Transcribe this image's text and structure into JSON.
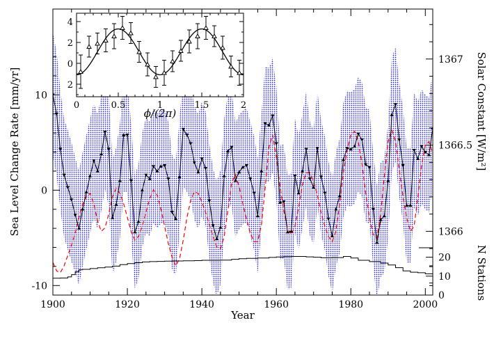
{
  "chart_data": [
    {
      "type": "line",
      "xlabel": "Year",
      "ylabel": "Sea Level Change Rate [mm/yr]",
      "y2label": "Solar Constant [W/m²]",
      "y3label": "N Stations",
      "xlim": [
        1900,
        2002
      ],
      "ylim": [
        -11,
        19
      ],
      "y2lim": [
        1365.63,
        1367.29
      ],
      "y3lim": [
        0,
        25
      ],
      "x_ticks": [
        1900,
        1920,
        1940,
        1960,
        1980,
        2000
      ],
      "y_ticks": [
        -10,
        0,
        10
      ],
      "y2_ticks": [
        1366,
        1366.5,
        1367
      ],
      "y3_ticks": [
        0,
        10,
        20
      ],
      "series": [
        {
          "role": "sea_level",
          "color": "#000000",
          "x": [
            1900,
            1901,
            1902,
            1903,
            1904,
            1905,
            1906,
            1907,
            1908,
            1909,
            1910,
            1911,
            1912,
            1913,
            1914,
            1915,
            1916,
            1917,
            1918,
            1919,
            1920,
            1921,
            1922,
            1923,
            1924,
            1925,
            1926,
            1927,
            1928,
            1929,
            1930,
            1931,
            1932,
            1933,
            1934,
            1935,
            1936,
            1937,
            1938,
            1939,
            1940,
            1941,
            1942,
            1943,
            1944,
            1945,
            1946,
            1947,
            1948,
            1949,
            1950,
            1951,
            1952,
            1953,
            1954,
            1955,
            1956,
            1957,
            1958,
            1959,
            1960,
            1961,
            1962,
            1963,
            1964,
            1965,
            1966,
            1967,
            1968,
            1969,
            1970,
            1971,
            1972,
            1973,
            1974,
            1975,
            1976,
            1977,
            1978,
            1979,
            1980,
            1981,
            1982,
            1983,
            1984,
            1985,
            1986,
            1987,
            1988,
            1989,
            1990,
            1991,
            1992,
            1993,
            1994,
            1995,
            1996,
            1997,
            1998,
            1999,
            2000,
            2001,
            2002
          ],
          "y": [
            10,
            8,
            4.3,
            1.6,
            0.3,
            -1,
            -2.6,
            -4,
            -2,
            -0.2,
            1.5,
            3.1,
            2,
            3.8,
            6.1,
            4.3,
            -2.9,
            -1.5,
            1,
            5.8,
            5.8,
            1,
            -4.4,
            -3.3,
            0,
            1.6,
            1.2,
            2.5,
            2,
            2.5,
            2.6,
            1.2,
            -2.3,
            -3,
            1.4,
            6.4,
            5.8,
            4.9,
            2.9,
            1.9,
            3.3,
            2.3,
            -1.1,
            -3.7,
            -5.1,
            -3.9,
            1.5,
            4.1,
            4.5,
            1,
            1.9,
            2.4,
            2.6,
            1.2,
            -0.3,
            -2.7,
            2,
            7,
            6.8,
            7.8,
            4.9,
            -1.3,
            -1.2,
            -4.4,
            -4.3,
            1.5,
            -0.3,
            2,
            4.3,
            1.2,
            0.3,
            4.4,
            1.4,
            -0.3,
            -3,
            -4.8,
            -2,
            -0.6,
            3.2,
            4.4,
            4.3,
            4.6,
            5.9,
            5.3,
            2.7,
            2.4,
            -2,
            -5.5,
            -3.1,
            -2.7,
            1,
            7.9,
            9,
            5.3,
            2.6,
            -1.6,
            -1.6,
            4.2,
            3.3,
            4.6,
            4,
            3.7,
            6.5
          ]
        },
        {
          "role": "sea_level_band",
          "color": "#1f1fcc",
          "x": [
            1900,
            1901,
            1902,
            1903,
            1904,
            1905,
            1906,
            1907,
            1908,
            1909,
            1910,
            1911,
            1912,
            1913,
            1914,
            1915,
            1916,
            1917,
            1918,
            1919,
            1920,
            1921,
            1922,
            1923,
            1924,
            1925,
            1926,
            1927,
            1928,
            1929,
            1930,
            1931,
            1932,
            1933,
            1934,
            1935,
            1936,
            1937,
            1938,
            1939,
            1940,
            1941,
            1942,
            1943,
            1944,
            1945,
            1946,
            1947,
            1948,
            1949,
            1950,
            1951,
            1952,
            1953,
            1954,
            1955,
            1956,
            1957,
            1958,
            1959,
            1960,
            1961,
            1962,
            1963,
            1964,
            1965,
            1966,
            1967,
            1968,
            1969,
            1970,
            1971,
            1972,
            1973,
            1974,
            1975,
            1976,
            1977,
            1978,
            1979,
            1980,
            1981,
            1982,
            1983,
            1984,
            1985,
            1986,
            1987,
            1988,
            1989,
            1990,
            1991,
            1992,
            1993,
            1994,
            1995,
            1996,
            1997,
            1998,
            1999,
            2000,
            2001,
            2002
          ],
          "upper": [
            16.5,
            14.5,
            10.5,
            7.5,
            6.3,
            5,
            3.4,
            2,
            4,
            5.8,
            7.5,
            9.1,
            8,
            9.8,
            12.1,
            10.3,
            3.1,
            4.5,
            7,
            11.8,
            11.8,
            7,
            1.6,
            2.7,
            6,
            7.6,
            7.2,
            8.5,
            8,
            8.5,
            8.6,
            7.2,
            3.7,
            3,
            7.4,
            12.4,
            11.8,
            10.9,
            8.9,
            7.9,
            9.3,
            8.3,
            4.9,
            2.3,
            0.9,
            2.1,
            7.5,
            10.1,
            10.5,
            7,
            7.9,
            8.4,
            8.6,
            7.2,
            5.7,
            3.3,
            8,
            13,
            12.8,
            13.8,
            10.9,
            4.7,
            4.8,
            1.6,
            1.7,
            7.5,
            5.7,
            8,
            10.3,
            7.2,
            6.3,
            10.4,
            7.4,
            5.7,
            3,
            1.2,
            4,
            5.4,
            9.2,
            10.4,
            10.3,
            10.6,
            11.9,
            11.3,
            8.7,
            8.4,
            4,
            0.5,
            2.9,
            3.3,
            7,
            13.9,
            15,
            11.3,
            8.6,
            4.4,
            4.4,
            10.2,
            9.3,
            10.6,
            10,
            9.7,
            12.5
          ],
          "lower": [
            3.5,
            1.5,
            -2,
            -5,
            -6.2,
            -7.5,
            -8.6,
            -10,
            -8,
            -6.2,
            -4.5,
            -2.9,
            -4,
            -2.2,
            0.1,
            -1.7,
            -8.9,
            -7.5,
            -5,
            -0.2,
            -0.2,
            -5,
            -10.4,
            -9.3,
            -6,
            -4.4,
            -4.8,
            -3.5,
            -4,
            -3.5,
            -3.4,
            -4.8,
            -8.3,
            -9,
            -4.6,
            0.4,
            -0.2,
            -1.1,
            -3.1,
            -4.1,
            -2.7,
            -3.7,
            -7.1,
            -9.7,
            -11.1,
            -9.9,
            -4.5,
            -1.9,
            -1.5,
            -5,
            -4.1,
            -3.6,
            -3.4,
            -4.8,
            -6.3,
            -8.7,
            -4,
            1,
            0.8,
            1.8,
            -1.1,
            -7.3,
            -7.2,
            -10.4,
            -10.3,
            -4.5,
            -6.3,
            -4,
            -1.7,
            -4.8,
            -5.7,
            -1.6,
            -4.6,
            -6.3,
            -9,
            -10.8,
            -8,
            -6.6,
            -2.8,
            -1.6,
            -1.7,
            -1.4,
            -0.1,
            -0.7,
            -3.3,
            -3.6,
            -8,
            -11.5,
            -9.1,
            -8.7,
            -5,
            1.9,
            3,
            -0.7,
            -3.4,
            -7.6,
            -7.6,
            -1.8,
            -2.7,
            -1.4,
            -2,
            -2.3,
            0.5
          ]
        },
        {
          "role": "solar_constant",
          "color": "#ff0000",
          "x": [
            1900,
            1901,
            1902,
            1903,
            1904,
            1905,
            1906,
            1907,
            1908,
            1909,
            1910,
            1911,
            1912,
            1913,
            1914,
            1915,
            1916,
            1917,
            1918,
            1919,
            1920,
            1921,
            1922,
            1923,
            1924,
            1925,
            1926,
            1927,
            1928,
            1929,
            1930,
            1931,
            1932,
            1933,
            1934,
            1935,
            1936,
            1937,
            1938,
            1939,
            1940,
            1941,
            1942,
            1943,
            1944,
            1945,
            1946,
            1947,
            1948,
            1949,
            1950,
            1951,
            1952,
            1953,
            1954,
            1955,
            1956,
            1957,
            1958,
            1959,
            1960,
            1961,
            1962,
            1963,
            1964,
            1965,
            1966,
            1967,
            1968,
            1969,
            1970,
            1971,
            1972,
            1973,
            1974,
            1975,
            1976,
            1977,
            1978,
            1979,
            1980,
            1981,
            1982,
            1983,
            1984,
            1985,
            1986,
            1987,
            1988,
            1989,
            1990,
            1991,
            1992,
            1993,
            1994,
            1995,
            1996,
            1997,
            1998,
            1999,
            2000,
            2001,
            2002
          ],
          "y": [
            1365.82,
            1365.77,
            1365.76,
            1365.8,
            1365.86,
            1365.92,
            1365.99,
            1366.08,
            1366.16,
            1366.2,
            1366.22,
            1366.16,
            1366.06,
            1366,
            1366.02,
            1366.1,
            1366.2,
            1366.25,
            1366.22,
            1366.16,
            1366.08,
            1366,
            1365.95,
            1365.97,
            1366.03,
            1366.11,
            1366.19,
            1366.24,
            1366.21,
            1366.13,
            1366.03,
            1365.93,
            1365.85,
            1365.8,
            1365.84,
            1365.95,
            1366.08,
            1366.18,
            1366.23,
            1366.22,
            1366.17,
            1366.11,
            1366.04,
            1365.97,
            1365.91,
            1365.9,
            1365.97,
            1366.12,
            1366.28,
            1366.33,
            1366.26,
            1366.16,
            1366.07,
            1365.99,
            1365.94,
            1365.94,
            1366.04,
            1366.25,
            1366.49,
            1366.56,
            1366.43,
            1366.26,
            1366.12,
            1366.02,
            1365.98,
            1366.03,
            1366.14,
            1366.27,
            1366.34,
            1366.34,
            1366.29,
            1366.21,
            1366.11,
            1366.03,
            1365.97,
            1365.94,
            1366,
            1366.16,
            1366.34,
            1366.47,
            1366.56,
            1366.58,
            1366.52,
            1366.39,
            1366.22,
            1366.08,
            1365.98,
            1365.96,
            1366.1,
            1366.32,
            1366.52,
            1366.59,
            1366.52,
            1366.36,
            1366.2,
            1366.08,
            1366,
            1366.03,
            1366.2,
            1366.38,
            1366.5,
            1366.52,
            1366.45
          ]
        },
        {
          "role": "n_stations",
          "color": "#000000",
          "x": [
            1900,
            1902,
            1904,
            1905,
            1906,
            1907,
            1908,
            1910,
            1912,
            1914,
            1916,
            1918,
            1920,
            1922,
            1924,
            1926,
            1928,
            1930,
            1932,
            1935,
            1938,
            1940,
            1942,
            1945,
            1948,
            1950,
            1952,
            1955,
            1958,
            1960,
            1962,
            1964,
            1966,
            1968,
            1970,
            1972,
            1975,
            1978,
            1980,
            1982,
            1985,
            1988,
            1990,
            1992,
            1994,
            1996,
            1998,
            2000,
            2002
          ],
          "y": [
            8.9,
            9,
            9.6,
            10.8,
            12.3,
            13.4,
            13.6,
            14,
            14.4,
            14.8,
            15.3,
            16.1,
            16.6,
            17.1,
            17.5,
            17.7,
            17.8,
            17.9,
            18,
            18.1,
            18.2,
            18.4,
            18.4,
            18.5,
            18.9,
            19.2,
            19.4,
            19.6,
            19.9,
            20.1,
            20.3,
            20.4,
            20.4,
            20.2,
            20,
            19.7,
            19.8,
            20.4,
            19.6,
            18.4,
            17.7,
            16.9,
            15.9,
            14.5,
            12.8,
            12.1,
            11.8,
            11.2,
            11
          ]
        }
      ]
    },
    {
      "type": "scatter",
      "xlabel": "ϕ/(2π)",
      "ylabel": "",
      "xlim": [
        0,
        2
      ],
      "ylim": [
        -3.2,
        4.8
      ],
      "x_ticks": [
        0,
        0.5,
        1,
        1.5,
        2
      ],
      "y_ticks": [
        -2,
        0,
        2,
        4
      ],
      "y_tick_labels": [
        "2",
        "0",
        "2",
        "4"
      ],
      "points": {
        "x": [
          0.05,
          0.15,
          0.25,
          0.35,
          0.45,
          0.55,
          0.65,
          0.75,
          0.85,
          0.95,
          1.05,
          1.15,
          1.25,
          1.35,
          1.45,
          1.55,
          1.65,
          1.75,
          1.85,
          1.95
        ],
        "y": [
          -0.8,
          1.6,
          1.9,
          2.2,
          2.6,
          3.4,
          2.9,
          1.1,
          -0.1,
          -1.3,
          -0.9,
          0.2,
          1.2,
          2.1,
          2.6,
          3.4,
          2.6,
          1.5,
          -0.3,
          -0.9
        ],
        "err": [
          1.6,
          1.0,
          1.0,
          1.1,
          1.2,
          1.1,
          1.0,
          1.0,
          1.1,
          1.0,
          1.2,
          1.0,
          1.0,
          1.1,
          1.2,
          1.1,
          1.0,
          1.1,
          1.0,
          1.2
        ]
      },
      "fit": {
        "form": "sinusoid",
        "mean": 1.1,
        "amplitude": 2.2,
        "peaks_at": [
          0.5,
          1.5
        ]
      }
    }
  ]
}
